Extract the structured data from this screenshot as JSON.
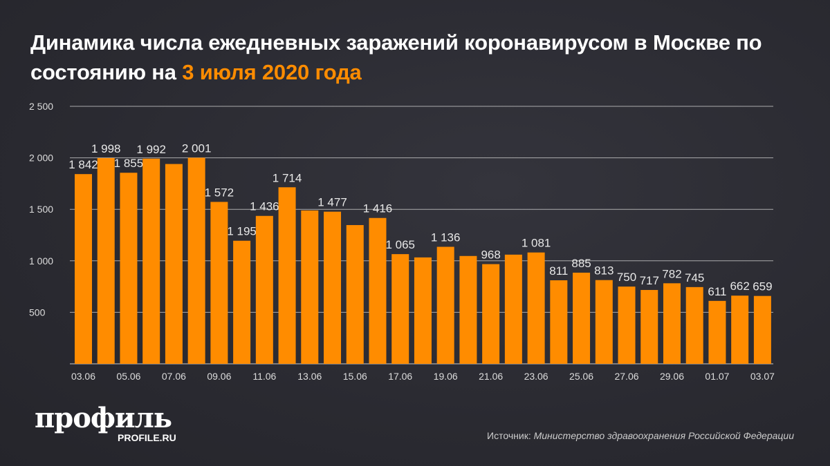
{
  "title": {
    "main": "Динамика числа ежедневных заражений коронавирусом в Москве по состоянию на",
    "highlight": "3 июля 2020 года"
  },
  "colors": {
    "bar": "#ff8c00",
    "highlight": "#ff8c00",
    "background": "#2a2a31",
    "grid": "#cccccc"
  },
  "logo": {
    "text": "профиль",
    "sub": "PROFILE.RU"
  },
  "source": {
    "label": "Источник:",
    "value": "Министерство здравоохранения Российской Федерации"
  },
  "chart_data": {
    "type": "bar",
    "categories": [
      "03.06",
      "04.06",
      "05.06",
      "06.06",
      "07.06",
      "08.06",
      "09.06",
      "10.06",
      "11.06",
      "12.06",
      "13.06",
      "14.06",
      "15.06",
      "16.06",
      "17.06",
      "18.06",
      "19.06",
      "20.06",
      "21.06",
      "22.06",
      "23.06",
      "24.06",
      "25.06",
      "26.06",
      "27.06",
      "28.06",
      "29.06",
      "30.06",
      "01.07",
      "02.07",
      "03.07"
    ],
    "values": [
      1842,
      1998,
      1855,
      1992,
      1940,
      2001,
      1572,
      1195,
      1436,
      1714,
      1489,
      1477,
      1347,
      1416,
      1065,
      1033,
      1136,
      1047,
      968,
      1060,
      1081,
      811,
      885,
      813,
      750,
      717,
      782,
      745,
      611,
      662,
      659
    ],
    "data_labels": [
      "1 842",
      "1 998",
      "1 855",
      "1 992",
      null,
      "2 001",
      "1 572",
      "1 195",
      "1 436",
      "1 714",
      null,
      "1 477",
      null,
      "1 416",
      "1 065",
      null,
      "1 136",
      null,
      "968",
      null,
      "1 081",
      "811",
      "885",
      "813",
      "750",
      "717",
      "782",
      "745",
      "611",
      "662",
      "659"
    ],
    "x_tick_labels": [
      "03.06",
      "05.06",
      "07.06",
      "09.06",
      "11.06",
      "13.06",
      "15.06",
      "17.06",
      "19.06",
      "21.06",
      "23.06",
      "25.06",
      "27.06",
      "29.06",
      "01.07",
      "03.07"
    ],
    "y_ticks": [
      500,
      1000,
      1500,
      2000,
      2500
    ],
    "y_tick_labels": [
      "500",
      "1 000",
      "1 500",
      "2 000",
      "2 500"
    ],
    "ylim": [
      0,
      2500
    ],
    "grid": true,
    "xlabel": "",
    "ylabel": ""
  }
}
